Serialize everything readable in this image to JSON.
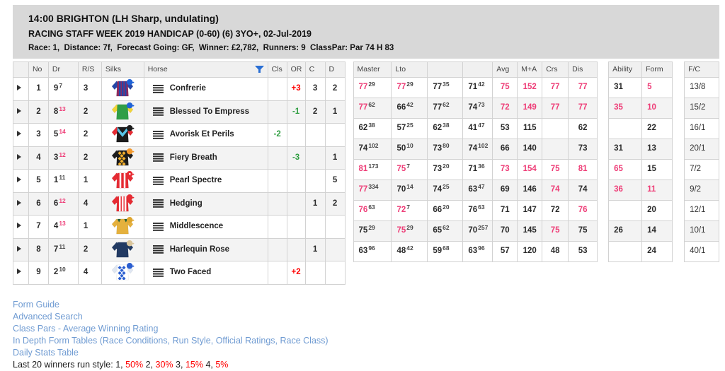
{
  "header": {
    "title": "14:00 BRIGHTON (LH Sharp, undulating)",
    "subtitle": "RACING STAFF WEEK 2019 HANDICAP (0-60) (6) 3YO+, 02-Jul-2019",
    "race_info": "Race: 1,  Distance: 7f,  Forecast Going: GF,  Winner: £2,782,  Runners: 9  ClassPar: Par 74 H 83"
  },
  "table": {
    "left_headers": [
      "",
      "No",
      "Dr",
      "R/S",
      "Silks",
      "Horse",
      "Cls",
      "OR",
      "C",
      "D"
    ],
    "mid_headers": [
      "Master",
      "Lto",
      "",
      "",
      "Avg",
      "M+A",
      "Crs",
      "Dis"
    ],
    "ability_headers": [
      "Ability",
      "Form"
    ],
    "fc_header": "F/C",
    "rows": [
      {
        "no": "1",
        "dr": "9",
        "dr_sup": "7",
        "dr_hot": false,
        "rs": "3",
        "horse": "Confrerie",
        "silks": {
          "body": "#8f2a5e",
          "sleeve": "#2447a8",
          "accent": "#2447a8",
          "pattern": "stripes",
          "cap": "#1f62d6"
        },
        "cls": "",
        "cls_dir": "",
        "or": "+3",
        "or_dir": "up",
        "c": "3",
        "d": "2",
        "ratings": [
          {
            "v": "77",
            "s": "29",
            "hot": true
          },
          {
            "v": "77",
            "s": "29",
            "hot": true
          },
          {
            "v": "77",
            "s": "35"
          },
          {
            "v": "71",
            "s": "42"
          },
          {
            "v": "75",
            "hot": true
          },
          {
            "v": "152",
            "hot": true
          },
          {
            "v": "77",
            "hot": true
          },
          {
            "v": "77",
            "hot": true
          }
        ],
        "ability": {
          "v": "31"
        },
        "form": {
          "v": "5",
          "hot": true
        },
        "fc": "13/8"
      },
      {
        "no": "2",
        "dr": "8",
        "dr_sup": "13",
        "dr_hot": true,
        "rs": "2",
        "horse": "Blessed To Empress",
        "silks": {
          "body": "#2f9e47",
          "sleeve": "#f2d438",
          "accent": "",
          "pattern": "none",
          "cap": "#1f62d6"
        },
        "cls": "",
        "cls_dir": "",
        "or": "-1",
        "or_dir": "down",
        "c": "2",
        "d": "1",
        "ratings": [
          {
            "v": "77",
            "s": "62",
            "hot": true
          },
          {
            "v": "66",
            "s": "42"
          },
          {
            "v": "77",
            "s": "62"
          },
          {
            "v": "74",
            "s": "73"
          },
          {
            "v": "72",
            "hot": true
          },
          {
            "v": "149",
            "hot": true
          },
          {
            "v": "77",
            "hot": true
          },
          {
            "v": "77",
            "hot": true
          }
        ],
        "ability": {
          "v": "35",
          "hot": true
        },
        "form": {
          "v": "10",
          "hot": true
        },
        "fc": "15/2"
      },
      {
        "no": "3",
        "dr": "5",
        "dr_sup": "14",
        "dr_hot": true,
        "rs": "2",
        "horse": "Avorisk Et Perils",
        "silks": {
          "body": "#1c1c1c",
          "sleeve": "#e62b33",
          "accent": "#57c4e8",
          "pattern": "chevron",
          "cap": "#1c1c1c"
        },
        "cls": "-2",
        "cls_dir": "down",
        "or": "",
        "or_dir": "",
        "c": "",
        "d": "",
        "ratings": [
          {
            "v": "62",
            "s": "38"
          },
          {
            "v": "57",
            "s": "25"
          },
          {
            "v": "62",
            "s": "38"
          },
          {
            "v": "41",
            "s": "47"
          },
          {
            "v": "53"
          },
          {
            "v": "115"
          },
          null,
          {
            "v": "62"
          }
        ],
        "ability": null,
        "form": {
          "v": "22"
        },
        "fc": "16/1"
      },
      {
        "no": "4",
        "dr": "3",
        "dr_sup": "12",
        "dr_hot": true,
        "rs": "2",
        "horse": "Fiery Breath",
        "silks": {
          "body": "#1c1c1c",
          "sleeve": "#1c1c1c",
          "accent": "#f2b02e",
          "pattern": "diamonds",
          "cap": "#f2992e"
        },
        "cls": "",
        "cls_dir": "",
        "or": "-3",
        "or_dir": "down",
        "c": "",
        "d": "1",
        "ratings": [
          {
            "v": "74",
            "s": "102"
          },
          {
            "v": "50",
            "s": "10"
          },
          {
            "v": "73",
            "s": "80"
          },
          {
            "v": "74",
            "s": "102"
          },
          {
            "v": "66"
          },
          {
            "v": "140"
          },
          null,
          {
            "v": "73"
          }
        ],
        "ability": {
          "v": "31"
        },
        "form": {
          "v": "13"
        },
        "fc": "20/1"
      },
      {
        "no": "5",
        "dr": "1",
        "dr_sup": "11",
        "dr_hot": false,
        "rs": "1",
        "horse": "Pearl Spectre",
        "silks": {
          "body": "#e62b33",
          "sleeve": "#e62b33",
          "accent": "#ffffff",
          "pattern": "braces",
          "cap": "#e62b33",
          "cap_accent": "#ffffff"
        },
        "cls": "",
        "cls_dir": "",
        "or": "",
        "or_dir": "",
        "c": "",
        "d": "5",
        "ratings": [
          {
            "v": "81",
            "s": "173",
            "hot": true
          },
          {
            "v": "75",
            "s": "7",
            "hot": true
          },
          {
            "v": "73",
            "s": "20"
          },
          {
            "v": "71",
            "s": "36"
          },
          {
            "v": "73",
            "hot": true
          },
          {
            "v": "154",
            "hot": true
          },
          {
            "v": "75",
            "hot": true
          },
          {
            "v": "81",
            "hot": true
          }
        ],
        "ability": {
          "v": "65",
          "hot": true
        },
        "form": {
          "v": "15"
        },
        "fc": "7/2"
      },
      {
        "no": "6",
        "dr": "6",
        "dr_sup": "12",
        "dr_hot": true,
        "rs": "4",
        "horse": "Hedging",
        "silks": {
          "body": "#e62b33",
          "sleeve": "#e62b33",
          "accent": "#ffffff",
          "pattern": "stripes",
          "cap": "#e62b33"
        },
        "cls": "",
        "cls_dir": "",
        "or": "",
        "or_dir": "",
        "c": "1",
        "d": "2",
        "ratings": [
          {
            "v": "77",
            "s": "334",
            "hot": true
          },
          {
            "v": "70",
            "s": "14"
          },
          {
            "v": "74",
            "s": "25"
          },
          {
            "v": "63",
            "s": "47"
          },
          {
            "v": "69"
          },
          {
            "v": "146"
          },
          {
            "v": "74",
            "hot": true
          },
          {
            "v": "74"
          }
        ],
        "ability": {
          "v": "36",
          "hot": true
        },
        "form": {
          "v": "11",
          "hot": true
        },
        "fc": "9/2"
      },
      {
        "no": "7",
        "dr": "4",
        "dr_sup": "13",
        "dr_hot": true,
        "rs": "1",
        "horse": "Middlescence",
        "silks": {
          "body": "#e5b13d",
          "sleeve": "#e5b13d",
          "accent": "#215e38",
          "pattern": "epaulets",
          "cap": "#dfa62f"
        },
        "cls": "",
        "cls_dir": "",
        "or": "",
        "or_dir": "",
        "c": "",
        "d": "",
        "ratings": [
          {
            "v": "76",
            "s": "63",
            "hot": true
          },
          {
            "v": "72",
            "s": "7",
            "hot": true
          },
          {
            "v": "66",
            "s": "20"
          },
          {
            "v": "76",
            "s": "63"
          },
          {
            "v": "71"
          },
          {
            "v": "147"
          },
          {
            "v": "72"
          },
          {
            "v": "76",
            "hot": true
          }
        ],
        "ability": null,
        "form": {
          "v": "20"
        },
        "fc": "12/1"
      },
      {
        "no": "8",
        "dr": "7",
        "dr_sup": "11",
        "dr_hot": false,
        "rs": "2",
        "horse": "Harlequin Rose",
        "silks": {
          "body": "#223a63",
          "sleeve": "#223a63",
          "accent": "",
          "pattern": "none",
          "cap": "#d9c59c"
        },
        "cls": "",
        "cls_dir": "",
        "or": "",
        "or_dir": "",
        "c": "1",
        "d": "",
        "ratings": [
          {
            "v": "75",
            "s": "29"
          },
          {
            "v": "75",
            "s": "29",
            "hot": true
          },
          {
            "v": "65",
            "s": "62"
          },
          {
            "v": "70",
            "s": "257"
          },
          {
            "v": "70"
          },
          {
            "v": "145"
          },
          {
            "v": "75",
            "hot": true
          },
          {
            "v": "75"
          }
        ],
        "ability": {
          "v": "26"
        },
        "form": {
          "v": "14"
        },
        "fc": "10/1"
      },
      {
        "no": "9",
        "dr": "2",
        "dr_sup": "10",
        "dr_hot": false,
        "rs": "4",
        "horse": "Two Faced",
        "silks": {
          "body": "#ffffff",
          "sleeve": "#dfe6f2",
          "accent": "#2a5ed0",
          "pattern": "check",
          "cap": "#2a5ed0"
        },
        "cls": "",
        "cls_dir": "",
        "or": "+2",
        "or_dir": "up",
        "c": "",
        "d": "",
        "ratings": [
          {
            "v": "63",
            "s": "96"
          },
          {
            "v": "48",
            "s": "42"
          },
          {
            "v": "59",
            "s": "68"
          },
          {
            "v": "63",
            "s": "96"
          },
          {
            "v": "57"
          },
          {
            "v": "120"
          },
          {
            "v": "48"
          },
          {
            "v": "53"
          }
        ],
        "ability": null,
        "form": {
          "v": "24"
        },
        "fc": "40/1"
      }
    ]
  },
  "links": [
    "Form Guide",
    "Advanced Search",
    "Class Pars - Average Winning Rating",
    "In Depth Form Tables (Race Conditions, Run Style, Official Ratings, Race Class)",
    "Daily Stats Table"
  ],
  "run_style_line": [
    {
      "text": "Last 20 winners run style: ",
      "color": "dark"
    },
    {
      "text": "1, ",
      "color": "dark"
    },
    {
      "text": "50%",
      "color": "red"
    },
    {
      "text": " 2, ",
      "color": "dark"
    },
    {
      "text": "30%",
      "color": "red"
    },
    {
      "text": " 3, ",
      "color": "dark"
    },
    {
      "text": "15%",
      "color": "red"
    },
    {
      "text": " 4, ",
      "color": "dark"
    },
    {
      "text": "5%",
      "color": "red"
    }
  ],
  "colors": {
    "hot": "#ee3d77",
    "up": "#ff0000",
    "down": "#2f9e41",
    "link": "#6f9bd2",
    "panel": "#d8d8d8",
    "filter_icon": "#2a6fd4"
  }
}
